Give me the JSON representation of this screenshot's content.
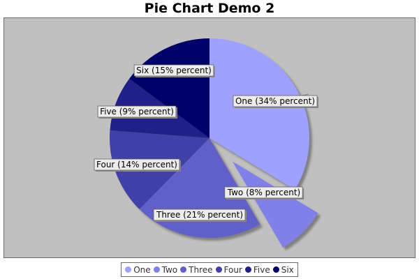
{
  "chart_data": {
    "type": "pie",
    "title": "Pie Chart Demo 2",
    "categories": [
      "One",
      "Two",
      "Three",
      "Four",
      "Five",
      "Six"
    ],
    "values": [
      34,
      8,
      21,
      14,
      9,
      15
    ],
    "labels": [
      "One (34% percent)",
      "Two (8% percent)",
      "Three (21% percent)",
      "Four (14% percent)",
      "Five (9% percent)",
      "Six (15% percent)"
    ],
    "colors": [
      "#a0a0ff",
      "#8080e8",
      "#6060c8",
      "#4040a8",
      "#202088",
      "#000068"
    ],
    "exploded": [
      "Two"
    ],
    "start": "top, clockwise",
    "legend_position": "bottom",
    "plot_background": "#c0c0c0"
  }
}
